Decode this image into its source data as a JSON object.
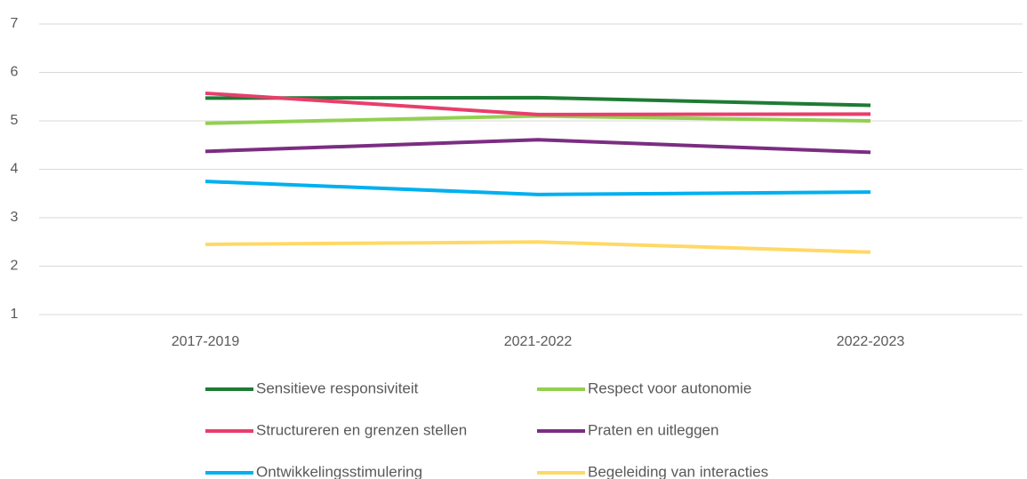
{
  "chart_data": {
    "type": "line",
    "categories": [
      "2017-2019",
      "2021-2022",
      "2022-2023"
    ],
    "series": [
      {
        "name": "Sensitieve responsiviteit",
        "color": "#1e7b34",
        "values": [
          5.47,
          5.48,
          5.32
        ]
      },
      {
        "name": "Respect voor autonomie",
        "color": "#92d050",
        "values": [
          4.95,
          5.1,
          5.0
        ]
      },
      {
        "name": "Structureren en grenzen stellen",
        "color": "#e83e6b",
        "values": [
          5.57,
          5.13,
          5.14
        ]
      },
      {
        "name": "Praten en uitleggen",
        "color": "#7b2d82",
        "values": [
          4.37,
          4.61,
          4.35
        ]
      },
      {
        "name": "Ontwikkelingsstimulering",
        "color": "#00b0f0",
        "values": [
          3.75,
          3.48,
          3.53
        ]
      },
      {
        "name": "Begeleiding van interacties",
        "color": "#ffd966",
        "values": [
          2.45,
          2.5,
          2.29
        ]
      }
    ],
    "ylim": [
      1,
      7
    ],
    "yticks": [
      1,
      2,
      3,
      4,
      5,
      6,
      7
    ],
    "grid": true,
    "legend": "bottom"
  }
}
